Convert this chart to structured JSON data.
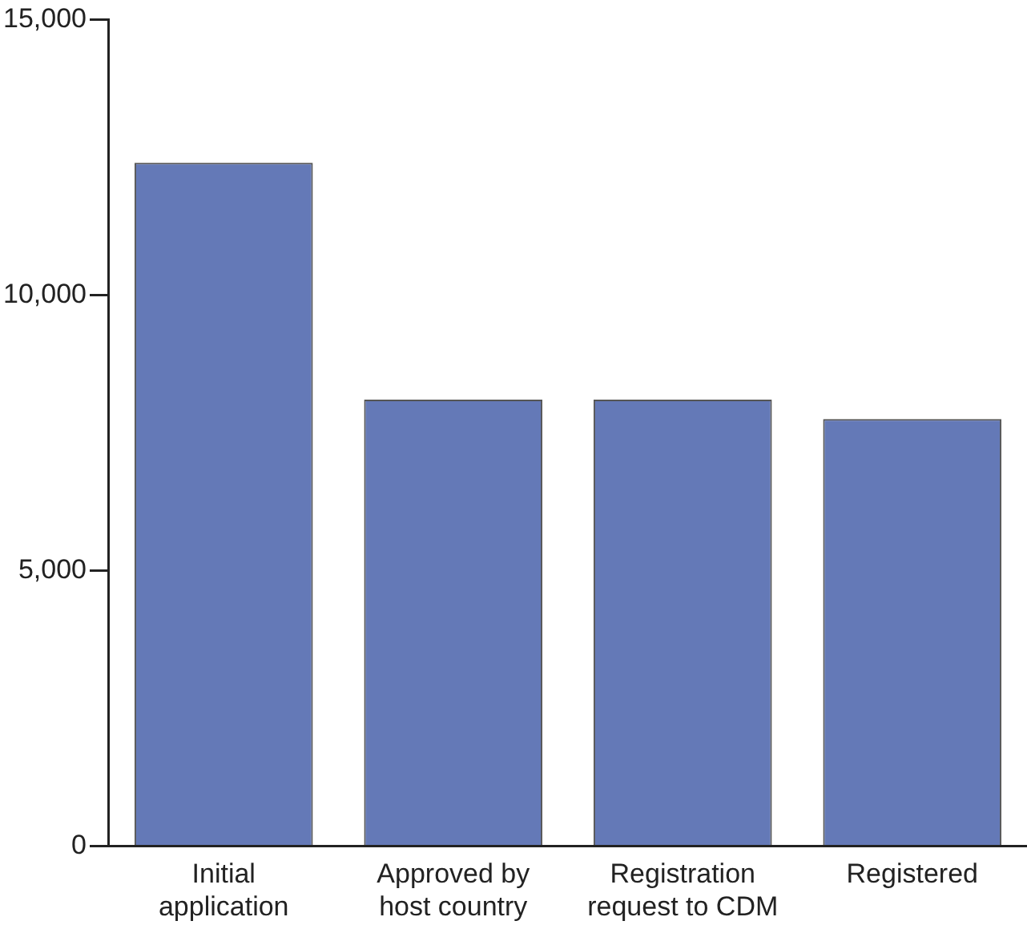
{
  "chart_data": {
    "type": "bar",
    "categories": [
      "Initial application",
      "Approved by host country",
      "Registration request to CDM",
      "Registered"
    ],
    "values": [
      12400,
      8100,
      8100,
      7750
    ],
    "color": "#6479b7",
    "ylim": [
      0,
      15000
    ],
    "yticks": [
      0,
      {
        "value": 5000,
        "label": "5,000"
      },
      {
        "value": 10000,
        "label": "10,000"
      },
      {
        "value": 15000,
        "label": "15,000"
      }
    ],
    "grid": false,
    "legend": false
  }
}
